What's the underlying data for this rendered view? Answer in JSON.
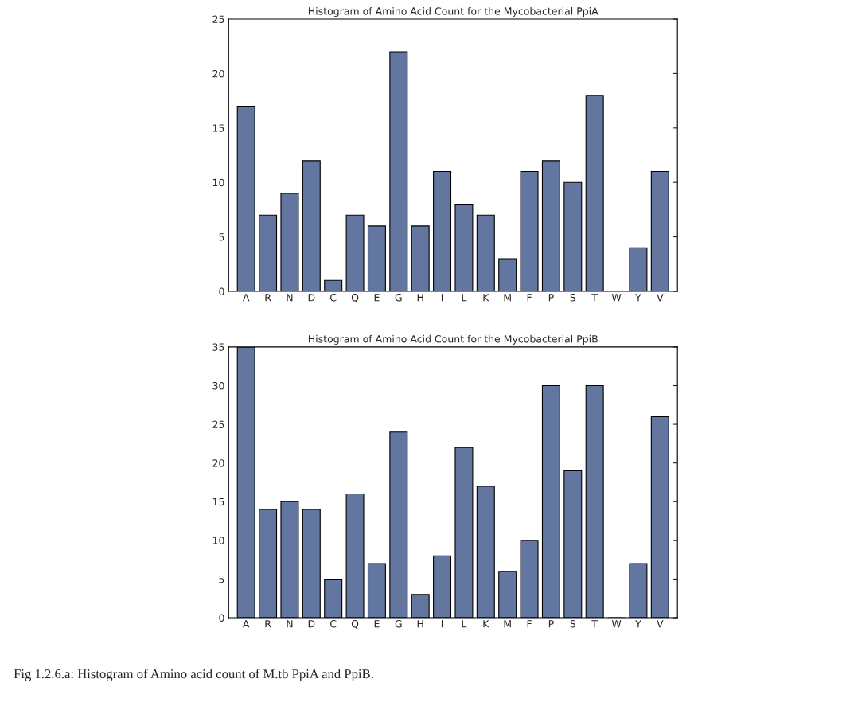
{
  "chart_data": [
    {
      "type": "bar",
      "title": "Histogram of Amino Acid Count for the Mycobacterial PpiA",
      "categories": [
        "A",
        "R",
        "N",
        "D",
        "C",
        "Q",
        "E",
        "G",
        "H",
        "I",
        "L",
        "K",
        "M",
        "F",
        "P",
        "S",
        "T",
        "W",
        "Y",
        "V"
      ],
      "values": [
        17,
        7,
        9,
        12,
        1,
        7,
        6,
        22,
        6,
        11,
        8,
        7,
        3,
        11,
        12,
        10,
        18,
        0,
        4,
        11
      ],
      "color": "#6276a0",
      "ylim": [
        0,
        25
      ],
      "yticks": [
        0,
        5,
        10,
        15,
        20,
        25
      ],
      "grid": false
    },
    {
      "type": "bar",
      "title": "Histogram of Amino Acid Count for the Mycobacterial PpiB",
      "categories": [
        "A",
        "R",
        "N",
        "D",
        "C",
        "Q",
        "E",
        "G",
        "H",
        "I",
        "L",
        "K",
        "M",
        "F",
        "P",
        "S",
        "T",
        "W",
        "Y",
        "V"
      ],
      "values": [
        35,
        14,
        15,
        14,
        5,
        16,
        7,
        24,
        3,
        8,
        22,
        17,
        6,
        10,
        30,
        19,
        30,
        0,
        7,
        26
      ],
      "color": "#6276a0",
      "ylim": [
        0,
        35
      ],
      "yticks": [
        0,
        5,
        10,
        15,
        20,
        25,
        30,
        35
      ],
      "grid": false,
      "annotations": [
        "Fig 1.2.6.a: Histogram of Amino acid count of M.tb PpiA and PpiB."
      ]
    }
  ]
}
